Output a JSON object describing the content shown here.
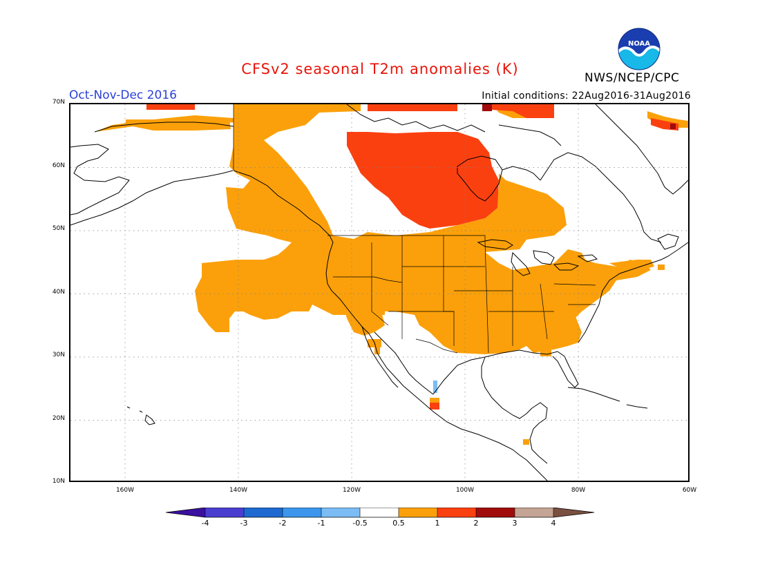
{
  "header": {
    "title": "CFSv2 seasonal T2m anomalies (K)",
    "agency": "NWS/NCEP/CPC",
    "season": "Oct-Nov-Dec 2016",
    "initial_conditions": "Initial conditions: 22Aug2016-31Aug2016",
    "logo_text": "NOAA"
  },
  "map": {
    "lon_range": [
      -172,
      -60
    ],
    "lat_range": [
      10,
      70
    ],
    "lat_ticks": [
      "10N",
      "20N",
      "30N",
      "40N",
      "50N",
      "60N",
      "70N"
    ],
    "lon_ticks": [
      "160W",
      "140W",
      "120W",
      "100W",
      "80W",
      "60W"
    ]
  },
  "legend": {
    "tick_labels": [
      "-4",
      "-3",
      "-2",
      "-1",
      "-0.5",
      "0.5",
      "1",
      "2",
      "3",
      "4"
    ],
    "colors": {
      "lt_-4": "#3a10a0",
      "-4_-3": "#4a3ed0",
      "-3_-2": "#1e6ad0",
      "-2_-1": "#3c96ec",
      "-1_-0.5": "#7cbcf4",
      "-0.5_0.5": "#ffffff",
      "0.5_1": "#fba00a",
      "1_2": "#fb4010",
      "2_3": "#a00c0c",
      "3_4": "#c4a494",
      "gt_4": "#7a5040"
    }
  }
}
